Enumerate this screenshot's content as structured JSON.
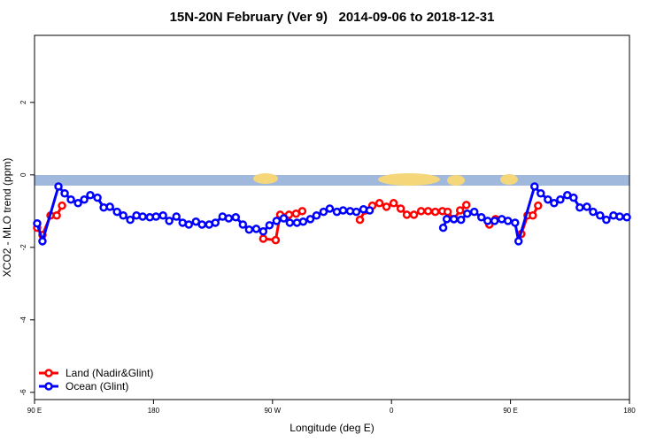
{
  "chart_data": {
    "type": "line",
    "title": "15N-20N February (Ver 9)   2014-09-06 to 2018-12-31",
    "xlabel": "Longitude (deg E)",
    "ylabel": "XCO2 - MLO trend (ppm)",
    "xlim": [
      90,
      540
    ],
    "ylim": [
      -6.2,
      3.85
    ],
    "xticks": [
      {
        "value": 90,
        "label": "90 E"
      },
      180,
      {
        "value": 270,
        "label": "90 W"
      },
      {
        "value": 360,
        "label": "0"
      },
      {
        "value": 450,
        "label": "90 E"
      },
      {
        "value": 540,
        "label": "180"
      }
    ],
    "yticks": [
      -6,
      -4,
      -2,
      0,
      2
    ],
    "legend": "bottom-left",
    "series": [
      {
        "name": "Land (Nadir&Glint)",
        "color": "#ff0000",
        "x": [
          92.0,
          96.0,
          102.1,
          106.8,
          110.8,
          190,
          263.0,
          272.4,
          275.8,
          282.5,
          287.8,
          292.5,
          315,
          336.1,
          340.1,
          345.5,
          350.9,
          356.2,
          361.6,
          367.0,
          371.6,
          377.0,
          382.4,
          387.7,
          393.1,
          398.5,
          402.5,
          407.2,
          411.9,
          416.6,
          425,
          434.0,
          438.7,
          448,
          458.2,
          462.9,
          466.9,
          470.9
        ],
        "values": [
          -1.46,
          -1.66,
          -1.12,
          -1.12,
          -0.85,
          null,
          -1.76,
          -1.8,
          -1.1,
          -1.1,
          -1.07,
          -1.0,
          null,
          -1.24,
          -0.98,
          -0.85,
          -0.78,
          -0.88,
          -0.78,
          -0.93,
          -1.1,
          -1.1,
          -1.0,
          -1.0,
          -1.02,
          -1.0,
          -1.02,
          -1.22,
          -0.98,
          -0.83,
          null,
          -1.37,
          -1.22,
          null,
          -1.63,
          -1.12,
          -1.12,
          -0.85
        ]
      },
      {
        "name": "Ocean (Glint)",
        "color": "#0000ff",
        "x": [
          92.0,
          96.0,
          108.1,
          112.8,
          117.5,
          122.9,
          127.6,
          132.2,
          137.6,
          142.3,
          147.0,
          152.4,
          157.1,
          162.4,
          167.1,
          171.8,
          177.2,
          181.9,
          187.2,
          191.9,
          197.3,
          202.0,
          206.7,
          212.1,
          216.7,
          222.1,
          226.8,
          232.2,
          236.9,
          242.2,
          247.6,
          252.3,
          257.7,
          263.0,
          267.7,
          273.1,
          278.5,
          283.1,
          288.5,
          293.2,
          298.6,
          303.3,
          308.6,
          313.3,
          318.7,
          323.4,
          328.7,
          333.4,
          338.8,
          343.5,
          370,
          399.1,
          401.8,
          407.2,
          412.6,
          417.3,
          422.6,
          428.0,
          432.7,
          438.0,
          443.4,
          448.1,
          453.5,
          456.1,
          468.2,
          472.9,
          478.3,
          483.0,
          487.7,
          493.0,
          497.7,
          502.4,
          507.8,
          512.5,
          517.8,
          522.5,
          527.9,
          532.6,
          538.0
        ],
        "values": [
          -1.34,
          -1.83,
          -0.32,
          -0.51,
          -0.68,
          -0.78,
          -0.68,
          -0.56,
          -0.63,
          -0.9,
          -0.88,
          -1.02,
          -1.12,
          -1.24,
          -1.12,
          -1.15,
          -1.17,
          -1.15,
          -1.12,
          -1.27,
          -1.15,
          -1.32,
          -1.37,
          -1.29,
          -1.37,
          -1.37,
          -1.32,
          -1.15,
          -1.2,
          -1.17,
          -1.37,
          -1.51,
          -1.49,
          -1.56,
          -1.39,
          -1.27,
          -1.2,
          -1.32,
          -1.32,
          -1.29,
          -1.22,
          -1.12,
          -1.02,
          -0.93,
          -1.02,
          -0.98,
          -1.0,
          -1.02,
          -0.95,
          -0.98,
          null,
          -1.46,
          -1.22,
          -1.22,
          -1.24,
          -1.07,
          -1.02,
          -1.17,
          -1.27,
          -1.27,
          -1.22,
          -1.27,
          -1.32,
          -1.83,
          -0.32,
          -0.51,
          -0.68,
          -0.78,
          -0.68,
          -0.56,
          -0.63,
          -0.9,
          -0.88,
          -1.02,
          -1.12,
          -1.24,
          -1.12,
          -1.15,
          -1.17
        ]
      }
    ]
  }
}
